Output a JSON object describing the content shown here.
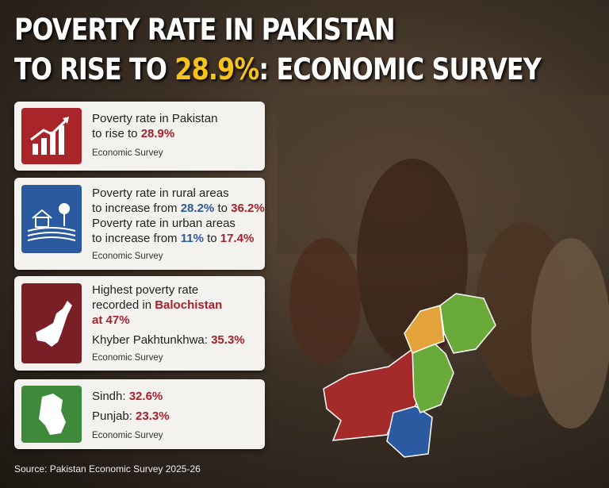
{
  "header": {
    "line1": "POVERTY RATE IN PAKISTAN",
    "line2_start": "TO RISE TO",
    "highlight": "28.9%",
    "line2_end": ": ECONOMIC SURVEY"
  },
  "cards": [
    {
      "lines": [
        [
          "Poverty rate in Pakistan"
        ],
        [
          "to rise to",
          "28.9%"
        ]
      ],
      "source": "Economic Survey"
    },
    {
      "lines": [
        [
          "Poverty rate in rural areas"
        ],
        [
          "to increase from",
          "28.2%",
          "to",
          "36.2%"
        ],
        [
          "Poverty rate in urban areas"
        ],
        [
          "to increase from",
          "11%",
          "to",
          "17.4%"
        ]
      ],
      "source": "Economic Survey"
    },
    {
      "lines": [
        [
          "Highest poverty rate"
        ],
        [
          "recorded in",
          "Balochistan"
        ],
        [
          "at 47%"
        ],
        [
          "Khyber Pakhtunkhwa:",
          "35.3%"
        ]
      ],
      "source": "Economic Survey"
    },
    {
      "lines": [
        [
          "Sindh:",
          "32.6%"
        ],
        [
          "Punjab:",
          "23.3%"
        ]
      ],
      "source": "Economic Survey"
    }
  ],
  "source": "Source: Pakistan Economic Survey 2025-26"
}
